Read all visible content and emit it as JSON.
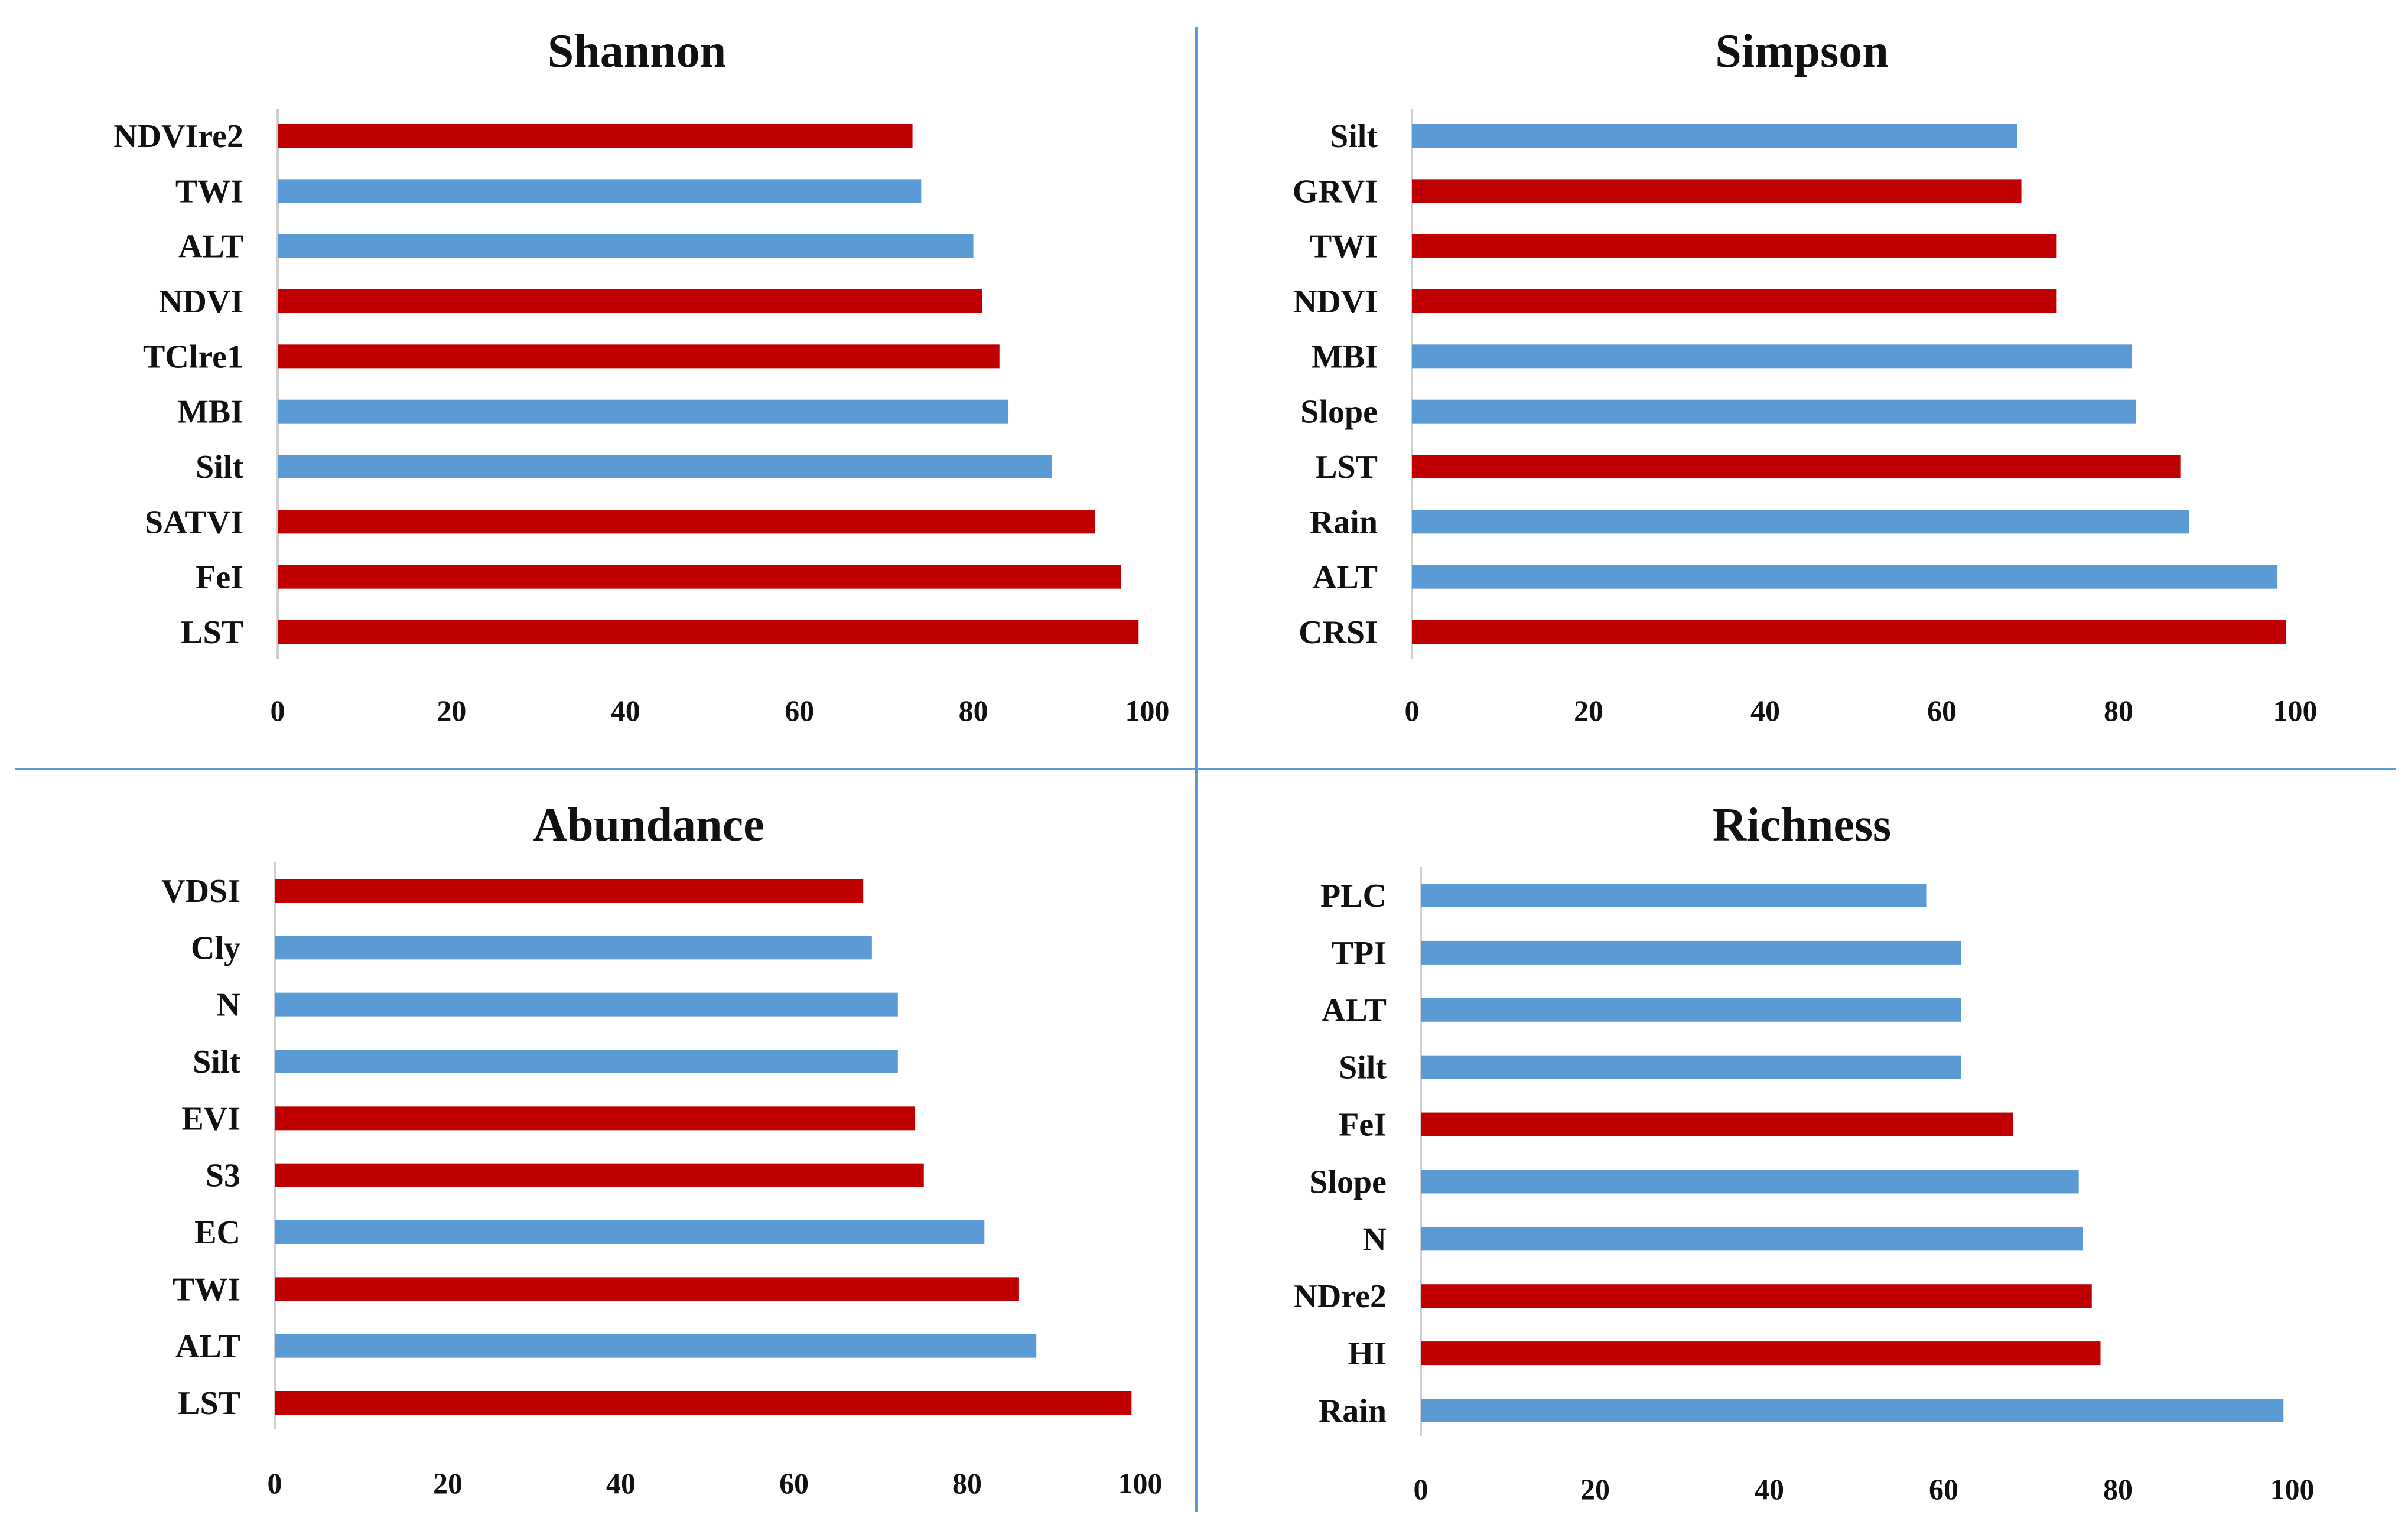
{
  "colors": {
    "red": "#c00000",
    "blue": "#5b9bd5",
    "divider": "#5b9bd5",
    "axis": "#d0d0d0"
  },
  "chart_data": [
    {
      "type": "bar",
      "orientation": "horizontal",
      "title": "Shannon",
      "xlim": [
        0,
        100
      ],
      "xticks": [
        "0",
        "20",
        "40",
        "60",
        "80",
        "100"
      ],
      "categories": [
        "NDVIre2",
        "TWI",
        "ALT",
        "NDVI",
        "TClre1",
        "MBI",
        "Silt",
        "SATVI",
        "FeI",
        "LST"
      ],
      "values": [
        73,
        74,
        80,
        81,
        83,
        84,
        89,
        94,
        97,
        99
      ],
      "bar_colors": [
        "red",
        "blue",
        "blue",
        "red",
        "red",
        "blue",
        "blue",
        "red",
        "red",
        "red"
      ]
    },
    {
      "type": "bar",
      "orientation": "horizontal",
      "title": "Simpson",
      "xlim": [
        0,
        100
      ],
      "xticks": [
        "0",
        "20",
        "40",
        "60",
        "80",
        "100"
      ],
      "categories": [
        "Silt",
        "GRVI",
        "TWI",
        "NDVI",
        "MBI",
        "Slope",
        "LST",
        "Rain",
        "ALT",
        "CRSI"
      ],
      "values": [
        68.5,
        69,
        73,
        73,
        81.5,
        82,
        87,
        88,
        98,
        99
      ],
      "bar_colors": [
        "blue",
        "red",
        "red",
        "red",
        "blue",
        "blue",
        "red",
        "blue",
        "blue",
        "red"
      ]
    },
    {
      "type": "bar",
      "orientation": "horizontal",
      "title": "Abundance",
      "xlim": [
        0,
        100
      ],
      "xticks": [
        "0",
        "20",
        "40",
        "60",
        "80",
        "100"
      ],
      "categories": [
        "VDSI",
        "Cly",
        "N",
        "Silt",
        "EVI",
        "S3",
        "EC",
        "TWI",
        "ALT",
        "LST"
      ],
      "values": [
        68,
        69,
        72,
        72,
        74,
        75,
        82,
        86,
        88,
        99
      ],
      "bar_colors": [
        "red",
        "blue",
        "blue",
        "blue",
        "red",
        "red",
        "blue",
        "red",
        "blue",
        "red"
      ]
    },
    {
      "type": "bar",
      "orientation": "horizontal",
      "title": "Richness",
      "xlim": [
        0,
        100
      ],
      "xticks": [
        "0",
        "20",
        "40",
        "60",
        "80",
        "100"
      ],
      "categories": [
        "PLC",
        "TPI",
        "ALT",
        "Silt",
        "FeI",
        "Slope",
        "N",
        "NDre2",
        "HI",
        "Rain"
      ],
      "values": [
        58,
        62,
        62,
        62,
        68,
        75.5,
        76,
        77,
        78,
        99
      ],
      "bar_colors": [
        "blue",
        "blue",
        "blue",
        "blue",
        "red",
        "blue",
        "blue",
        "red",
        "red",
        "blue"
      ]
    }
  ]
}
